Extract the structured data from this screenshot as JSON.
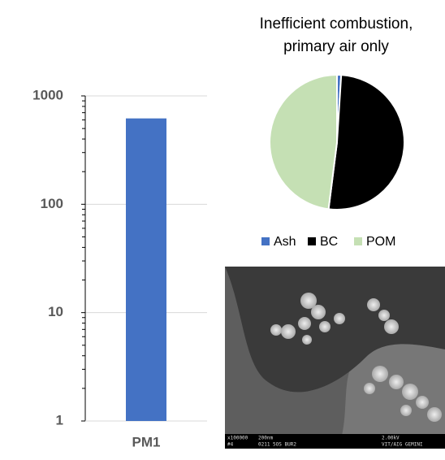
{
  "chart_data": [
    {
      "type": "bar",
      "categories": [
        "PM1"
      ],
      "values": [
        620
      ],
      "color": "#4472c4",
      "log_scale": true,
      "ylim": [
        1,
        1000
      ],
      "yticks": [
        1,
        10,
        100,
        1000
      ],
      "grid": true
    },
    {
      "type": "pie",
      "title_lines": [
        "Inefficient combustion,",
        "primary air only"
      ],
      "categories": [
        "Ash",
        "BC",
        "POM"
      ],
      "values": [
        1,
        51,
        48
      ],
      "colors": [
        "#4472c4",
        "#000000",
        "#c5e0b4"
      ],
      "legend": "bottom"
    }
  ],
  "image": {
    "caption_left": [
      "x100000",
      "#4"
    ],
    "caption_mid": [
      "200nm",
      "0211 5OS BUR2"
    ],
    "caption_right": [
      "2.00kV",
      "VIT/AIG GEMINI"
    ]
  }
}
